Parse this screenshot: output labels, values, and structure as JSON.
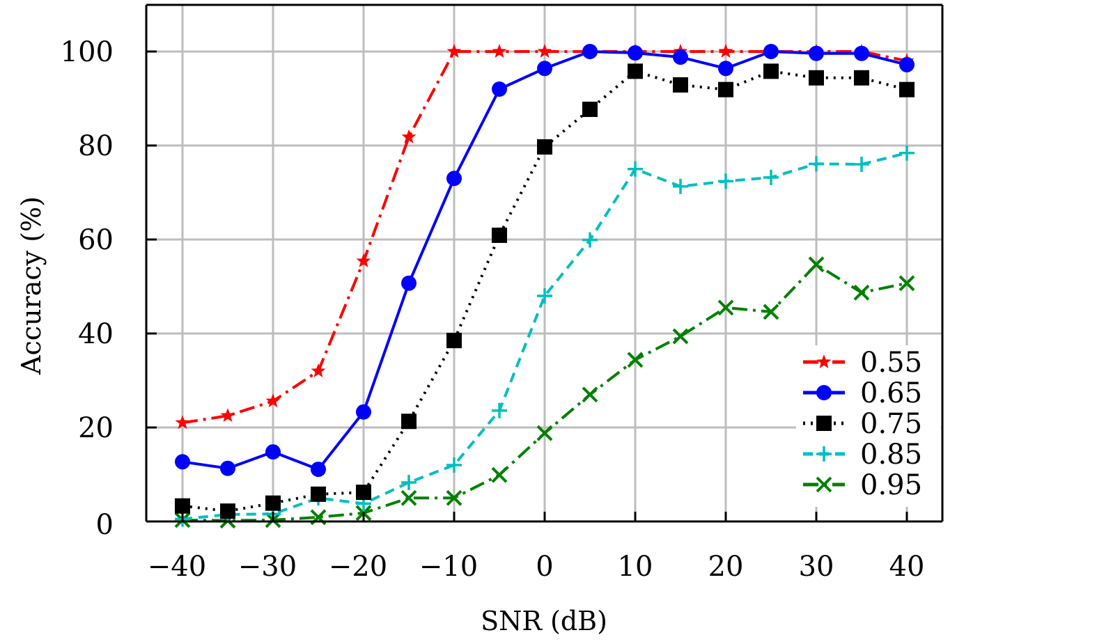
{
  "chart_data": {
    "type": "line",
    "title": "",
    "xlabel": "SNR (dB)",
    "ylabel": "Accuracy (%)",
    "xlim": [
      -44,
      44
    ],
    "ylim": [
      0,
      110
    ],
    "grid": true,
    "legend_position": "bottom-right",
    "x_ticks": [
      -40,
      -30,
      -20,
      -10,
      0,
      10,
      20,
      30,
      40
    ],
    "x_tick_labels": [
      "−40",
      "−30",
      "−20",
      "−10",
      "0",
      "10",
      "20",
      "30",
      "40"
    ],
    "y_ticks": [
      0,
      20,
      40,
      60,
      80,
      100
    ],
    "y_tick_labels": [
      "0",
      "20",
      "40",
      "60",
      "80",
      "100"
    ],
    "x": [
      -40,
      -35,
      -30,
      -25,
      -20,
      -15,
      -10,
      -5,
      0,
      5,
      10,
      15,
      20,
      25,
      30,
      35,
      40
    ],
    "series": [
      {
        "name": "0.55",
        "color": "#ff0000",
        "line_style": "dashdot",
        "marker": "star",
        "values": [
          21.0,
          22.5,
          25.6,
          32.0,
          55.4,
          81.8,
          100,
          100,
          100,
          100,
          100,
          100,
          100,
          100,
          100,
          100,
          98.0
        ]
      },
      {
        "name": "0.65",
        "color": "#0000ff",
        "line_style": "solid",
        "marker": "circle",
        "values": [
          12.7,
          11.3,
          14.8,
          11.1,
          23.3,
          50.7,
          73.0,
          92.0,
          96.4,
          100,
          99.7,
          98.8,
          96.4,
          100,
          99.6,
          99.6,
          97.2
        ]
      },
      {
        "name": "0.75",
        "color": "#000000",
        "line_style": "dotted",
        "marker": "square",
        "values": [
          3.3,
          2.2,
          3.9,
          5.8,
          6.2,
          21.3,
          38.5,
          60.9,
          79.7,
          87.7,
          95.8,
          92.9,
          91.9,
          95.8,
          94.4,
          94.4,
          91.9
        ]
      },
      {
        "name": "0.85",
        "color": "#00bfbf",
        "line_style": "dashed",
        "marker": "plus",
        "values": [
          0.5,
          1.5,
          1.6,
          5.0,
          3.8,
          8.3,
          12.0,
          23.6,
          48.0,
          59.9,
          75.0,
          71.3,
          72.4,
          73.2,
          76.1,
          76.0,
          78.4
        ]
      },
      {
        "name": "0.95",
        "color": "#008000",
        "line_style": "dashdot",
        "marker": "x",
        "values": [
          0.3,
          0.2,
          0.3,
          0.9,
          1.8,
          5.0,
          5.0,
          9.9,
          18.8,
          27.0,
          34.4,
          39.4,
          45.5,
          44.6,
          54.7,
          48.7,
          50.7
        ]
      }
    ]
  }
}
